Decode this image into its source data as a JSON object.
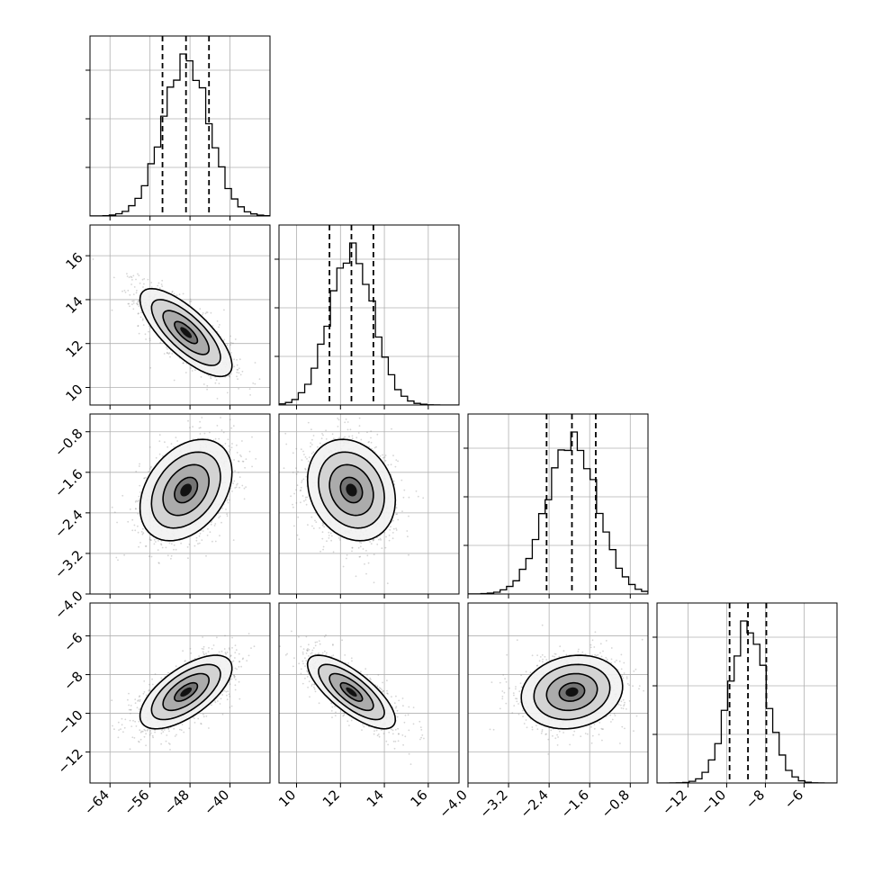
{
  "chart_data": {
    "type": "corner",
    "title": "",
    "grid": true,
    "parameters": [
      {
        "id": "p0",
        "xlim": [
          -68,
          -32
        ],
        "ticks": [
          -64,
          -56,
          -48,
          -40
        ],
        "tick_labels": [
          "−64",
          "−56",
          "−48",
          "−40"
        ],
        "mean": -48.8,
        "std": 4.6,
        "q16": -53.5,
        "q50": -48.8,
        "q84": -44.2
      },
      {
        "id": "p1",
        "xlim": [
          9.2,
          17.4
        ],
        "ticks": [
          10,
          12,
          14,
          16
        ],
        "tick_labels": [
          "10",
          "12",
          "14",
          "16"
        ],
        "mean": 12.5,
        "std": 1.0,
        "q16": 11.5,
        "q50": 12.5,
        "q84": 13.5
      },
      {
        "id": "p2",
        "xlim": [
          -4.0,
          -0.45
        ],
        "ticks": [
          -4.0,
          -3.2,
          -2.4,
          -1.6,
          -0.8
        ],
        "tick_labels": [
          "−4.0",
          "−3.2",
          "−2.4",
          "−1.6",
          "−0.8"
        ],
        "mean": -1.95,
        "std": 0.5,
        "q16": -2.45,
        "q50": -1.95,
        "q84": -1.48
      },
      {
        "id": "p3",
        "xlim": [
          -13.6,
          -4.3
        ],
        "ticks": [
          -12,
          -10,
          -8,
          -6
        ],
        "tick_labels": [
          "−12",
          "−10",
          "−8",
          "−6"
        ],
        "mean": -8.9,
        "std": 0.95,
        "q16": -9.85,
        "q50": -8.9,
        "q84": -7.95
      }
    ],
    "correlations": [
      {
        "x": "p0",
        "y": "p1",
        "rho": -0.75
      },
      {
        "x": "p0",
        "y": "p2",
        "rho": 0.35
      },
      {
        "x": "p1",
        "y": "p2",
        "rho": -0.2
      },
      {
        "x": "p0",
        "y": "p3",
        "rho": 0.65
      },
      {
        "x": "p1",
        "y": "p3",
        "rho": -0.75
      },
      {
        "x": "p2",
        "y": "p3",
        "rho": 0.15
      }
    ],
    "contour_levels_sigma": [
      0.5,
      1.0,
      1.5,
      2.0
    ],
    "colors": {
      "line": "#000000",
      "grid": "#b0b0b0",
      "points": "#888888"
    }
  }
}
